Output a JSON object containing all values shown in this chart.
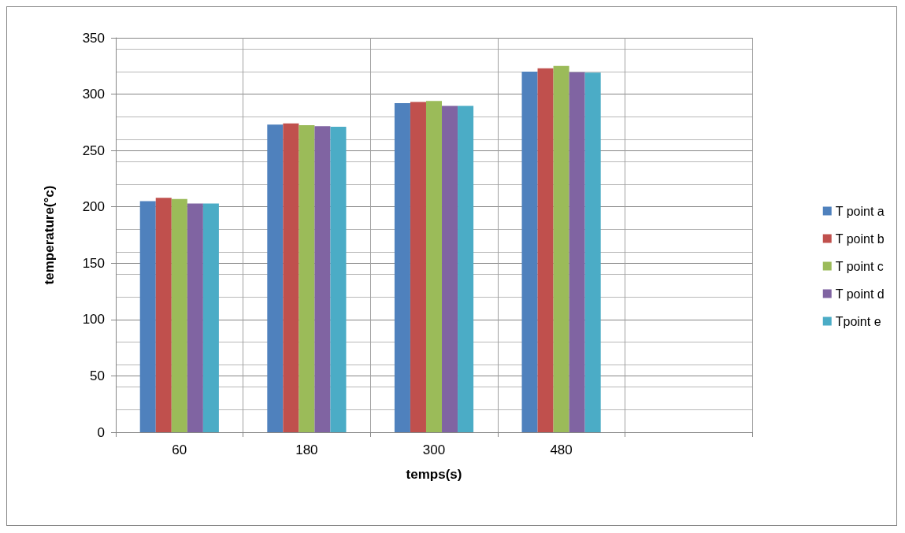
{
  "chart_data": {
    "type": "bar",
    "xlabel": "temps(s)",
    "ylabel": "temperature(°c)",
    "categories": [
      "60",
      "180",
      "300",
      "480",
      null
    ],
    "series": [
      {
        "name": "T point a",
        "color": "#4f81bd",
        "values": [
          205,
          273,
          292,
          320,
          null
        ]
      },
      {
        "name": "T point b",
        "color": "#c0504d",
        "values": [
          208,
          274,
          293,
          323,
          null
        ]
      },
      {
        "name": "T point c",
        "color": "#9bbb59",
        "values": [
          207,
          272.5,
          294,
          325,
          null
        ]
      },
      {
        "name": "T point d",
        "color": "#8064a2",
        "values": [
          203,
          271.5,
          289.5,
          319.5,
          null
        ]
      },
      {
        "name": "Tpoint e",
        "color": "#4bacc6",
        "values": [
          203,
          271,
          289.5,
          319,
          null
        ]
      }
    ],
    "ylim": [
      0,
      350
    ],
    "yticks": [
      0,
      50,
      100,
      150,
      200,
      250,
      300,
      350
    ],
    "grid": true,
    "legend": "right"
  }
}
